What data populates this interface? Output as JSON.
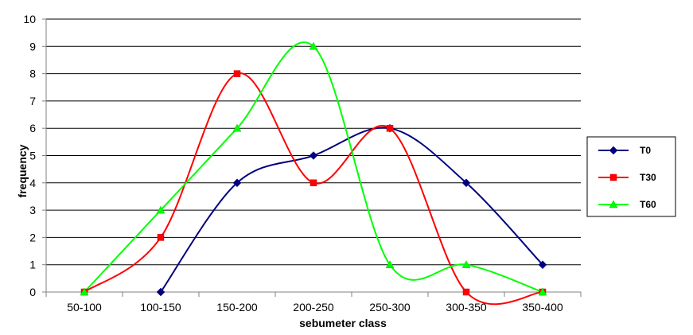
{
  "chart_data": {
    "type": "line",
    "xlabel": "sebumeter class",
    "ylabel": "frequency",
    "categories": [
      "50-100",
      "100-150",
      "150-200",
      "200-250",
      "250-300",
      "300-350",
      "350-400"
    ],
    "ylim": [
      0,
      10
    ],
    "yticks": [
      0,
      1,
      2,
      3,
      4,
      5,
      6,
      7,
      8,
      9,
      10
    ],
    "grid": true,
    "smooth": true,
    "legend": "right",
    "series": [
      {
        "name": "T0",
        "color": "#000080",
        "marker": "diamond",
        "x": [
          "100-150",
          "150-200",
          "200-250",
          "250-300",
          "300-350",
          "350-400"
        ],
        "values": [
          0,
          4,
          5,
          6,
          4,
          1
        ]
      },
      {
        "name": "T30",
        "color": "#ff0000",
        "marker": "square",
        "x": [
          "50-100",
          "100-150",
          "150-200",
          "200-250",
          "250-300",
          "300-350",
          "350-400"
        ],
        "values": [
          0,
          2,
          8,
          4,
          6,
          0,
          0
        ]
      },
      {
        "name": "T60",
        "color": "#00ff00",
        "marker": "triangle",
        "x": [
          "50-100",
          "100-150",
          "150-200",
          "200-250",
          "250-300",
          "300-350",
          "350-400"
        ],
        "values": [
          0,
          3,
          6,
          9,
          1,
          1,
          0
        ]
      }
    ]
  }
}
